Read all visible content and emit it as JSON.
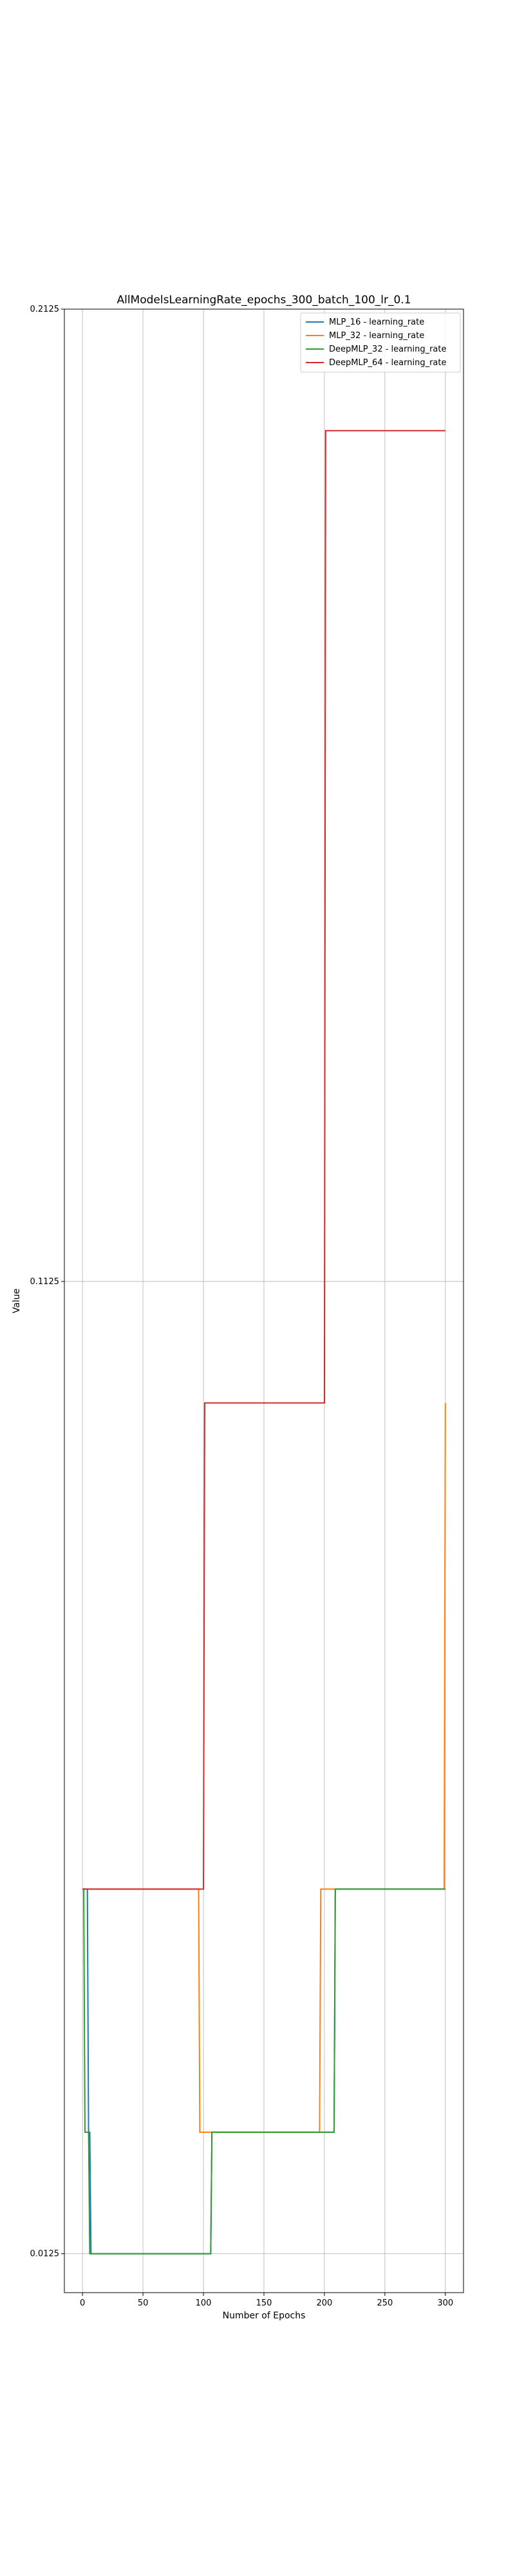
{
  "chart_data": {
    "type": "line",
    "title": "AllModelsLearningRate_epochs_300_batch_100_lr_0.1",
    "xlabel": "Number of Epochs",
    "ylabel": "Value",
    "xlim": [
      -15,
      315
    ],
    "ylim": [
      0.0085,
      0.2125
    ],
    "x_ticks": [
      0,
      50,
      100,
      150,
      200,
      250,
      300
    ],
    "x_tick_labels": [
      "0",
      "50",
      "100",
      "150",
      "200",
      "250",
      "300"
    ],
    "y_ticks": [
      0.0125,
      0.1125,
      0.2125
    ],
    "y_tick_labels": [
      "0.0125",
      "0.1125",
      "0.2125"
    ],
    "grid": true,
    "legend_position": "upper-right",
    "series": [
      {
        "name": "MLP_16 - learning_rate",
        "color": "#1f77b4",
        "points": [
          [
            0,
            0.05
          ],
          [
            4,
            0.05
          ],
          [
            5,
            0.025
          ],
          [
            6,
            0.025
          ],
          [
            7,
            0.0125
          ],
          [
            106,
            0.0125
          ],
          [
            107,
            0.025
          ],
          [
            208,
            0.025
          ],
          [
            209,
            0.05
          ],
          [
            300,
            0.05
          ]
        ]
      },
      {
        "name": "MLP_32 - learning_rate",
        "color": "#ff7f0e",
        "points": [
          [
            0,
            0.05
          ],
          [
            96,
            0.05
          ],
          [
            97,
            0.025
          ],
          [
            196,
            0.025
          ],
          [
            197,
            0.05
          ],
          [
            299,
            0.05
          ],
          [
            300,
            0.1
          ]
        ]
      },
      {
        "name": "DeepMLP_32 - learning_rate",
        "color": "#2ca02c",
        "points": [
          [
            0,
            0.05
          ],
          [
            1,
            0.05
          ],
          [
            2,
            0.025
          ],
          [
            5,
            0.025
          ],
          [
            6,
            0.0125
          ],
          [
            106,
            0.0125
          ],
          [
            107,
            0.025
          ],
          [
            208,
            0.025
          ],
          [
            209,
            0.05
          ],
          [
            300,
            0.05
          ]
        ]
      },
      {
        "name": "DeepMLP_64 - learning_rate",
        "color": "#d62728",
        "points": [
          [
            0,
            0.05
          ],
          [
            100,
            0.05
          ],
          [
            101,
            0.1
          ],
          [
            200,
            0.1
          ],
          [
            201,
            0.2
          ],
          [
            300,
            0.2
          ]
        ]
      }
    ]
  }
}
